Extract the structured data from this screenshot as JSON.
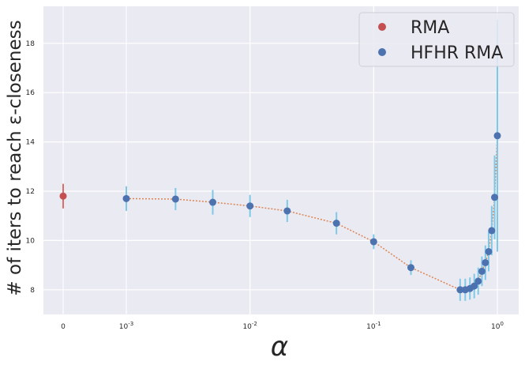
{
  "chart_data": {
    "type": "scatter",
    "xlabel": "α",
    "ylabel": "# of iters to reach ε-closeness",
    "x_scale": "symlog",
    "x_ticks": [
      {
        "value": 0,
        "label": "0"
      },
      {
        "value": 0.001,
        "label": "10",
        "exp": "-3"
      },
      {
        "value": 0.01,
        "label": "10",
        "exp": "-2"
      },
      {
        "value": 0.1,
        "label": "10",
        "exp": "-1"
      },
      {
        "value": 1,
        "label": "10",
        "exp": "0"
      }
    ],
    "y_ticks": [
      8,
      10,
      12,
      14,
      16,
      18
    ],
    "ylim": [
      7,
      19.5
    ],
    "grid": true,
    "legend_position": "top-right",
    "series": [
      {
        "name": "RMA",
        "color": "#c44e52",
        "error_color": "#d9706a",
        "points": [
          {
            "x": 0,
            "y": 11.8,
            "err": 0.5
          }
        ]
      },
      {
        "name": "HFHR RMA",
        "color": "#4c72b0",
        "error_color": "#7ec8e8",
        "line_color": "#dd8452",
        "points": [
          {
            "x": 0.001,
            "y": 11.7,
            "err": 0.5
          },
          {
            "x": 0.0025,
            "y": 11.68,
            "err": 0.45
          },
          {
            "x": 0.005,
            "y": 11.55,
            "err": 0.5
          },
          {
            "x": 0.01,
            "y": 11.4,
            "err": 0.45
          },
          {
            "x": 0.02,
            "y": 11.2,
            "err": 0.45
          },
          {
            "x": 0.05,
            "y": 10.7,
            "err": 0.45
          },
          {
            "x": 0.1,
            "y": 9.95,
            "err": 0.3
          },
          {
            "x": 0.2,
            "y": 8.9,
            "err": 0.3
          },
          {
            "x": 0.5,
            "y": 8.0,
            "err": 0.45
          },
          {
            "x": 0.55,
            "y": 8.0,
            "err": 0.45
          },
          {
            "x": 0.6,
            "y": 8.05,
            "err": 0.45
          },
          {
            "x": 0.65,
            "y": 8.15,
            "err": 0.5
          },
          {
            "x": 0.7,
            "y": 8.35,
            "err": 0.55
          },
          {
            "x": 0.75,
            "y": 8.75,
            "err": 0.6
          },
          {
            "x": 0.8,
            "y": 9.1,
            "err": 0.7
          },
          {
            "x": 0.85,
            "y": 9.55,
            "err": 0.8
          },
          {
            "x": 0.9,
            "y": 10.4,
            "err": 1.0
          },
          {
            "x": 0.95,
            "y": 11.75,
            "err": 1.7
          },
          {
            "x": 1.0,
            "y": 14.25,
            "err": 4.7
          }
        ]
      }
    ]
  }
}
